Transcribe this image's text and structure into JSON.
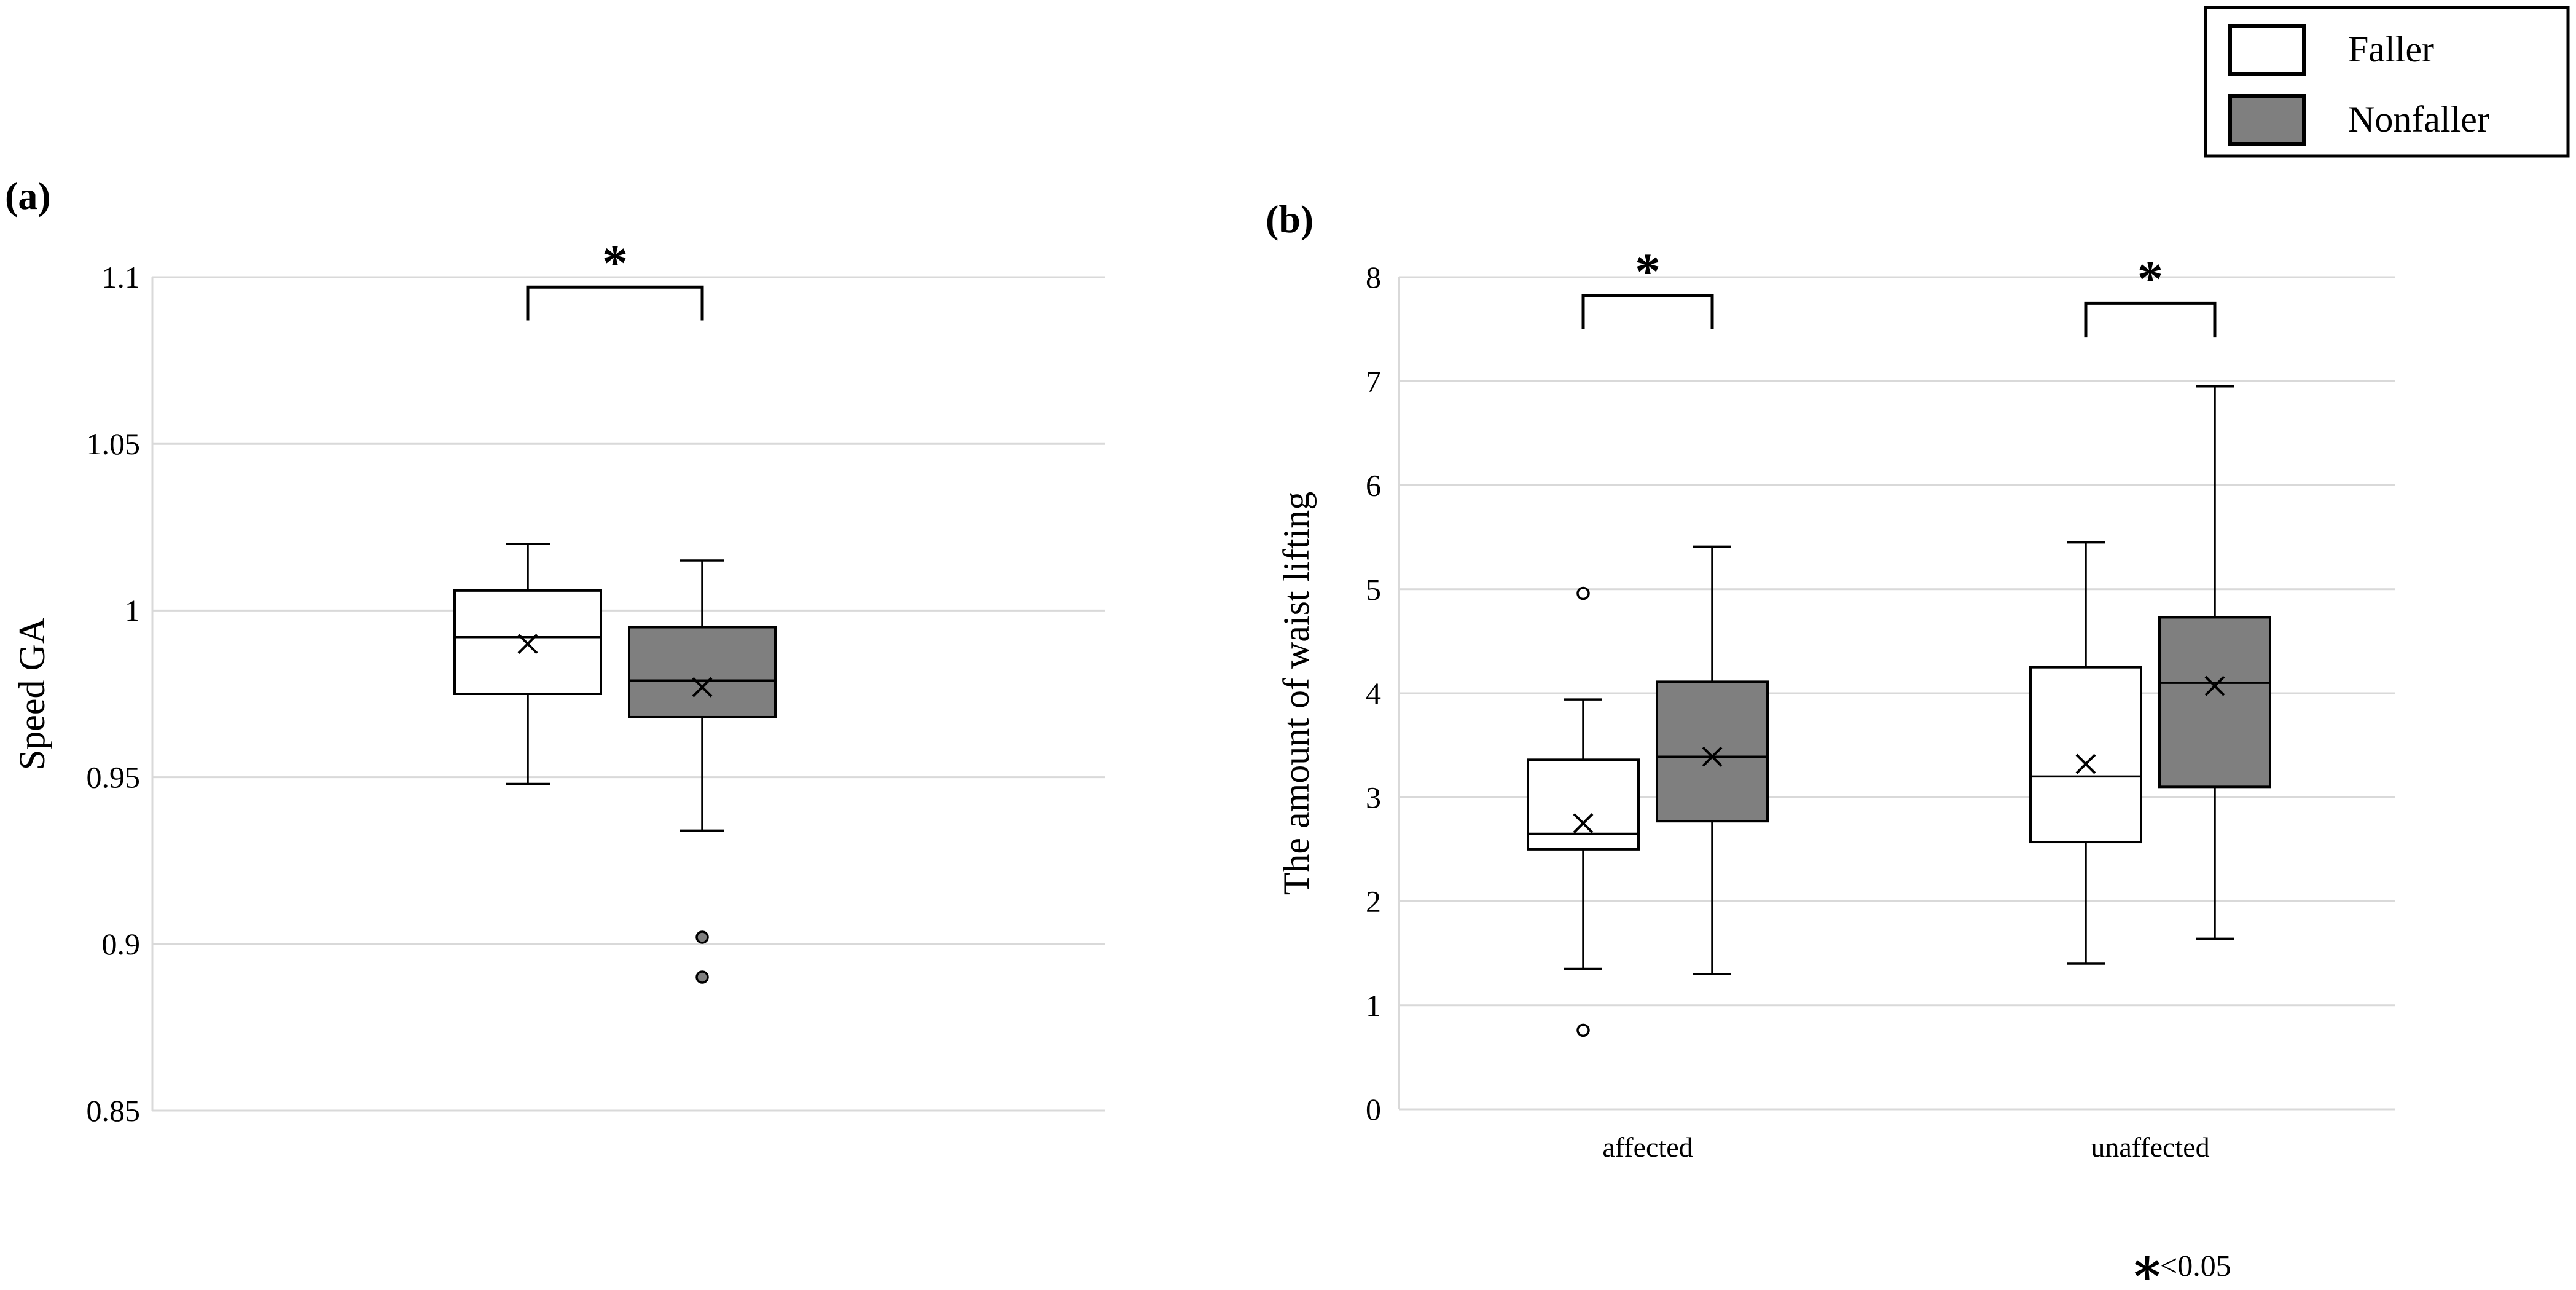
{
  "colors": {
    "faller_fill": "#ffffff",
    "nonfaller_fill": "#7f7f7f",
    "faller_outlier": "#ffffff",
    "nonfaller_outlier": "#7f7f7f",
    "grid": "#d9d9d9"
  },
  "legend": {
    "items": [
      {
        "label": "Faller",
        "color": "#ffffff"
      },
      {
        "label": "Nonfaller",
        "color": "#7f7f7f"
      }
    ]
  },
  "significance": {
    "symbol": "∗",
    "note_text": "<0.05"
  },
  "chart_data": [
    {
      "type": "boxplot",
      "panel_label": "(a)",
      "ylabel": "Speed GA",
      "xlabel": "",
      "ylim": [
        0.85,
        1.1
      ],
      "yticks": [
        0.85,
        0.9,
        0.95,
        1,
        1.05,
        1.1
      ],
      "ytick_labels": [
        "0.85",
        "0.9",
        "0.95",
        "1",
        "1.05",
        "1.1"
      ],
      "categories": [
        ""
      ],
      "series": [
        {
          "name": "Faller",
          "boxes": [
            {
              "category": "",
              "min": 0.948,
              "q1": 0.975,
              "median": 0.992,
              "q3": 1.006,
              "max": 1.02,
              "mean": 0.99,
              "outliers": []
            }
          ]
        },
        {
          "name": "Nonfaller",
          "boxes": [
            {
              "category": "",
              "min": 0.934,
              "q1": 0.968,
              "median": 0.979,
              "q3": 0.995,
              "max": 1.015,
              "mean": 0.977,
              "outliers": [
                0.902,
                0.89
              ]
            }
          ]
        }
      ],
      "significance": [
        {
          "category": "",
          "label": "*",
          "level": 1.087,
          "top": 1.097
        }
      ]
    },
    {
      "type": "boxplot",
      "panel_label": "(b)",
      "ylabel": "The amount of waist lifting",
      "xlabel": "",
      "ylim": [
        0,
        8
      ],
      "yticks": [
        0,
        1,
        2,
        3,
        4,
        5,
        6,
        7,
        8
      ],
      "ytick_labels": [
        "0",
        "1",
        "2",
        "3",
        "4",
        "5",
        "6",
        "7",
        "8"
      ],
      "categories": [
        "affected",
        "unaffected"
      ],
      "series": [
        {
          "name": "Faller",
          "boxes": [
            {
              "category": "affected",
              "min": 1.35,
              "q1": 2.5,
              "median": 2.65,
              "q3": 3.36,
              "max": 3.94,
              "mean": 2.75,
              "outliers": [
                4.96,
                0.76
              ]
            },
            {
              "category": "unaffected",
              "min": 1.4,
              "q1": 2.57,
              "median": 3.2,
              "q3": 4.25,
              "max": 5.45,
              "mean": 3.32,
              "outliers": []
            }
          ]
        },
        {
          "name": "Nonfaller",
          "boxes": [
            {
              "category": "affected",
              "min": 1.3,
              "q1": 2.77,
              "median": 3.39,
              "q3": 4.11,
              "max": 5.41,
              "mean": 3.39,
              "outliers": []
            },
            {
              "category": "unaffected",
              "min": 1.64,
              "q1": 3.1,
              "median": 4.1,
              "q3": 4.73,
              "max": 6.95,
              "mean": 4.07,
              "outliers": []
            }
          ]
        }
      ],
      "significance": [
        {
          "category": "affected",
          "label": "*",
          "level": 7.5,
          "top": 7.82
        },
        {
          "category": "unaffected",
          "label": "*",
          "level": 7.42,
          "top": 7.75
        }
      ]
    }
  ]
}
